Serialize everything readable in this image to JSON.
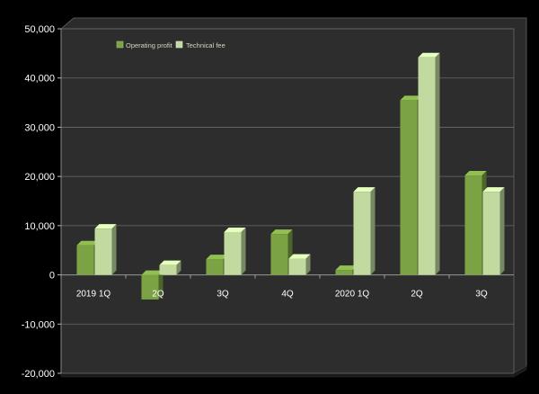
{
  "chart_data": {
    "type": "bar",
    "categories": [
      "2019 1Q",
      "2Q",
      "3Q",
      "4Q",
      "2020 1Q",
      "2Q",
      "3Q"
    ],
    "series": [
      {
        "name": "Operating profit",
        "values": [
          6000,
          -5000,
          3200,
          8300,
          1000,
          35500,
          20200
        ],
        "color": "#7ba344"
      },
      {
        "name": "Technical fee",
        "values": [
          9400,
          2000,
          8700,
          3300,
          16900,
          44200,
          16900
        ],
        "color": "#c2d9a0"
      }
    ],
    "ylim": [
      -20000,
      50000
    ],
    "yticks": [
      "50,000",
      "40,000",
      "30,000",
      "20,000",
      "10,000",
      "0",
      "-10,000",
      "-20,000"
    ],
    "ytick_values": [
      50000,
      40000,
      30000,
      20000,
      10000,
      0,
      -10000,
      -20000
    ],
    "title": "",
    "xlabel": "",
    "ylabel": "",
    "grid": true,
    "legend_position": "top-left",
    "background_color": "#2c2c2c",
    "frame_color": "#000000"
  }
}
